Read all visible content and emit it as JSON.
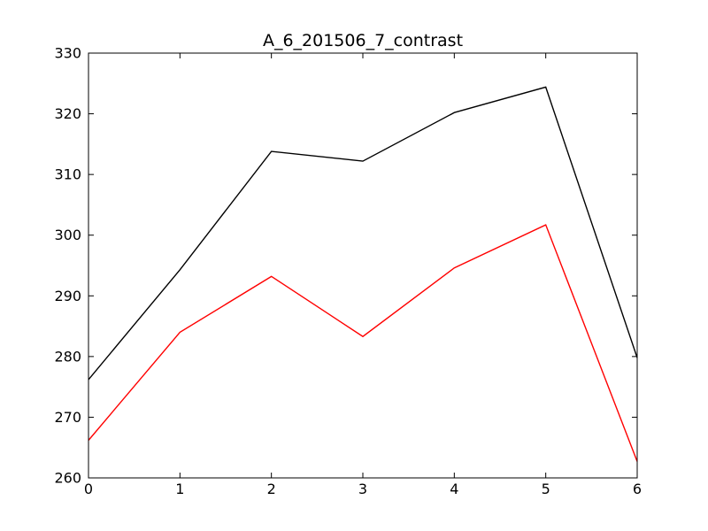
{
  "chart_data": {
    "type": "line",
    "title": "A_6_201506_7_contrast",
    "xlabel": "",
    "ylabel": "",
    "x": [
      0,
      1,
      2,
      3,
      4,
      5,
      6
    ],
    "xlim": [
      0,
      6
    ],
    "ylim": [
      260,
      330
    ],
    "xticks": [
      0,
      1,
      2,
      3,
      4,
      5,
      6
    ],
    "yticks": [
      260,
      270,
      280,
      290,
      300,
      310,
      320,
      330
    ],
    "grid": false,
    "series": [
      {
        "color": "#000000",
        "values": [
          276.2,
          294.3,
          313.8,
          312.2,
          320.2,
          324.4,
          279.8
        ]
      },
      {
        "color": "#ff0000",
        "values": [
          266.2,
          284.0,
          293.2,
          283.3,
          294.6,
          301.7,
          262.7
        ]
      }
    ]
  }
}
